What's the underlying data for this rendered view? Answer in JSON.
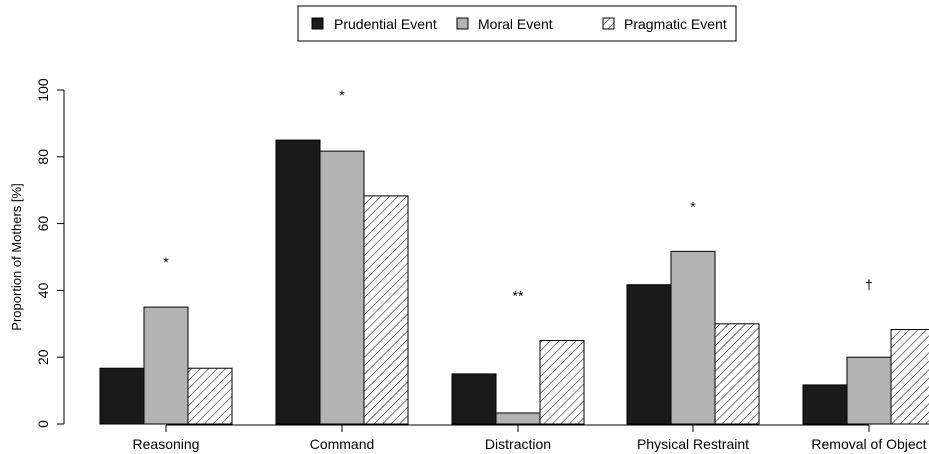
{
  "chart_data": {
    "type": "bar",
    "ylabel": "Proportion of Mothers [%]",
    "ylim": [
      0,
      100
    ],
    "yticks": [
      0,
      20,
      40,
      60,
      80,
      100
    ],
    "categories": [
      "Reasoning",
      "Command",
      "Distraction",
      "Physical Restraint",
      "Removal of Object"
    ],
    "series": [
      {
        "name": "Prudential Event",
        "pattern": "solid-black",
        "color": "#1a1a1a",
        "values": [
          16.7,
          85.0,
          15.0,
          41.7,
          11.7
        ]
      },
      {
        "name": "Moral Event",
        "pattern": "solid-gray",
        "color": "#b3b3b3",
        "values": [
          35.0,
          81.7,
          3.3,
          51.7,
          20.0
        ]
      },
      {
        "name": "Pragmatic Event",
        "pattern": "hatched",
        "color": "#ffffff",
        "values": [
          16.7,
          68.3,
          25.0,
          30.0,
          28.3
        ]
      }
    ],
    "significance": [
      "*",
      "*",
      "**",
      "*",
      "†"
    ],
    "legend_position": "top-center",
    "grid": false
  }
}
